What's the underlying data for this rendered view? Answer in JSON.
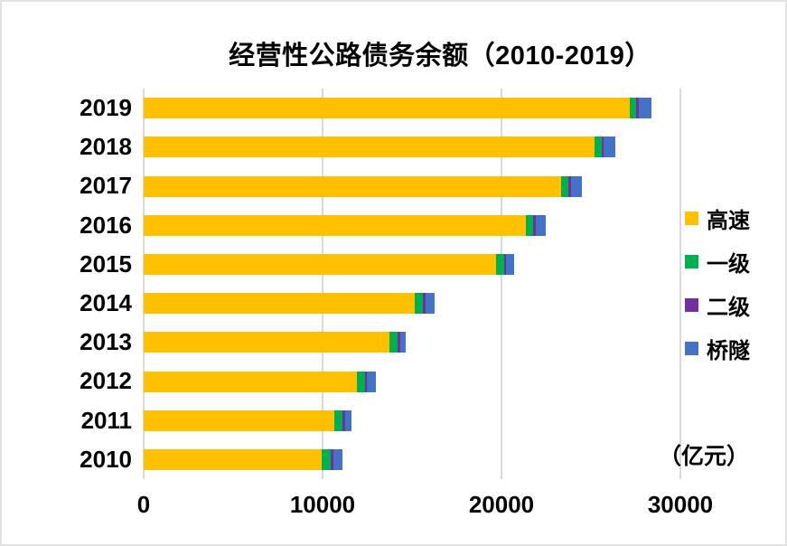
{
  "title": "经营性公路债务余额（2010-2019）",
  "unit_label": "（亿元）",
  "y_axis": {
    "labels": [
      "2019",
      "2018",
      "2017",
      "2016",
      "2015",
      "2014",
      "2013",
      "2012",
      "2011",
      "2010"
    ]
  },
  "x_axis": {
    "tick_labels": [
      "0",
      "10000",
      "20000",
      "30000"
    ]
  },
  "legend": {
    "position": "right",
    "items": [
      {
        "label": "高速",
        "color": "#FFC000"
      },
      {
        "label": "一级",
        "color": "#00B050"
      },
      {
        "label": "二级",
        "color": "#7030A0"
      },
      {
        "label": "桥隧",
        "color": "#4472C4"
      }
    ]
  },
  "colors": {
    "grid": "#D9D9D9",
    "text": "#000000",
    "card_border": "#E2E2E2",
    "background": "#FFFFFF"
  },
  "chart_data": {
    "type": "bar",
    "orientation": "horizontal",
    "stacked": true,
    "title": "经营性公路债务余额（2010-2019）",
    "unit": "亿元",
    "categories": [
      "2019",
      "2018",
      "2017",
      "2016",
      "2015",
      "2014",
      "2013",
      "2012",
      "2011",
      "2010"
    ],
    "series": [
      {
        "name": "高速",
        "color": "#FFC000",
        "values": [
          27160,
          25220,
          23340,
          21350,
          19700,
          15130,
          13730,
          11930,
          10650,
          9950
        ]
      },
      {
        "name": "一级",
        "color": "#00B050",
        "values": [
          390,
          385,
          390,
          440,
          440,
          470,
          440,
          425,
          455,
          490
        ]
      },
      {
        "name": "二级",
        "color": "#7030A0",
        "values": [
          130,
          120,
          135,
          115,
          115,
          135,
          150,
          130,
          135,
          150
        ]
      },
      {
        "name": "桥隧",
        "color": "#4472C4",
        "values": [
          690,
          625,
          655,
          595,
          455,
          505,
          335,
          490,
          355,
          505
        ]
      }
    ],
    "xlim": [
      0,
      30000
    ],
    "x_ticks": [
      0,
      10000,
      20000,
      30000
    ],
    "grid": "vertical",
    "legend_position": "right"
  }
}
